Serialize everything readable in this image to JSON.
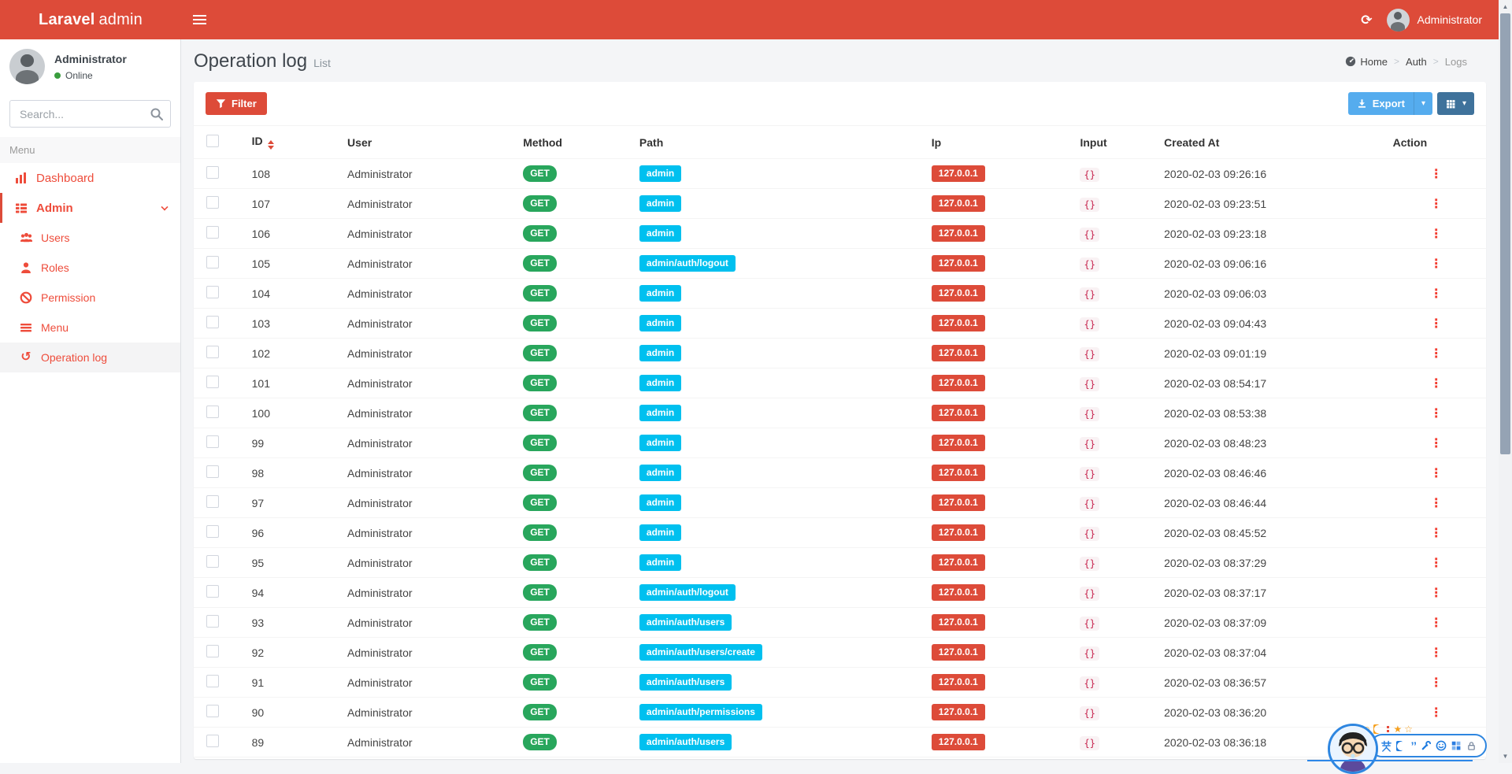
{
  "colors": {
    "navbar_red": "#dd4b39",
    "sidebar_menu_red": "#ee4c3b",
    "badge_method_green": "#28a65c",
    "badge_path_cyan": "#00c0ef",
    "badge_ip_red": "#dd4b39",
    "input_code_pink": "#c7254e",
    "export_button_blue": "#55acee",
    "grid_button_blue": "#3f729b",
    "online_green": "#3a9d3e"
  },
  "navbar": {
    "brand_bold": "Laravel",
    "brand_rest": "admin",
    "user_label": "Administrator",
    "icons": [
      "hamburger-icon",
      "refresh-icon",
      "avatar"
    ]
  },
  "sidebar": {
    "user_name": "Administrator",
    "user_status": "Online",
    "search_placeholder": "Search...",
    "menu_header": "Menu",
    "items": [
      {
        "label": "Dashboard",
        "icon": "bar-chart-icon"
      },
      {
        "label": "Admin",
        "icon": "th-list-icon",
        "active": true,
        "expanded": true
      },
      {
        "label": "Users",
        "icon": "users-icon"
      },
      {
        "label": "Roles",
        "icon": "user-icon"
      },
      {
        "label": "Permission",
        "icon": "ban-icon"
      },
      {
        "label": "Menu",
        "icon": "bars-icon"
      },
      {
        "label": "Operation log",
        "icon": "history-icon",
        "selected": true
      }
    ]
  },
  "header": {
    "title": "Operation log",
    "subtitle": "List",
    "breadcrumb": [
      {
        "label": "Home",
        "icon": "dashboard-gauge-icon"
      },
      {
        "label": "Auth"
      },
      {
        "label": "Logs"
      }
    ]
  },
  "toolbar": {
    "filter_label": "Filter",
    "export_label": "Export",
    "icons": [
      "funnel-icon",
      "download-icon",
      "caret-down-icon",
      "table-grid-icon"
    ]
  },
  "table": {
    "columns": [
      "ID",
      "User",
      "Method",
      "Path",
      "Ip",
      "Input",
      "Created At",
      "Action"
    ],
    "sort_column": "ID",
    "rows": [
      {
        "id": "108",
        "user": "Administrator",
        "method": "GET",
        "path": "admin",
        "ip": "127.0.0.1",
        "input": "{}",
        "created_at": "2020-02-03 09:26:16"
      },
      {
        "id": "107",
        "user": "Administrator",
        "method": "GET",
        "path": "admin",
        "ip": "127.0.0.1",
        "input": "{}",
        "created_at": "2020-02-03 09:23:51"
      },
      {
        "id": "106",
        "user": "Administrator",
        "method": "GET",
        "path": "admin",
        "ip": "127.0.0.1",
        "input": "{}",
        "created_at": "2020-02-03 09:23:18"
      },
      {
        "id": "105",
        "user": "Administrator",
        "method": "GET",
        "path": "admin/auth/logout",
        "ip": "127.0.0.1",
        "input": "{}",
        "created_at": "2020-02-03 09:06:16"
      },
      {
        "id": "104",
        "user": "Administrator",
        "method": "GET",
        "path": "admin",
        "ip": "127.0.0.1",
        "input": "{}",
        "created_at": "2020-02-03 09:06:03"
      },
      {
        "id": "103",
        "user": "Administrator",
        "method": "GET",
        "path": "admin",
        "ip": "127.0.0.1",
        "input": "{}",
        "created_at": "2020-02-03 09:04:43"
      },
      {
        "id": "102",
        "user": "Administrator",
        "method": "GET",
        "path": "admin",
        "ip": "127.0.0.1",
        "input": "{}",
        "created_at": "2020-02-03 09:01:19"
      },
      {
        "id": "101",
        "user": "Administrator",
        "method": "GET",
        "path": "admin",
        "ip": "127.0.0.1",
        "input": "{}",
        "created_at": "2020-02-03 08:54:17"
      },
      {
        "id": "100",
        "user": "Administrator",
        "method": "GET",
        "path": "admin",
        "ip": "127.0.0.1",
        "input": "{}",
        "created_at": "2020-02-03 08:53:38"
      },
      {
        "id": "99",
        "user": "Administrator",
        "method": "GET",
        "path": "admin",
        "ip": "127.0.0.1",
        "input": "{}",
        "created_at": "2020-02-03 08:48:23"
      },
      {
        "id": "98",
        "user": "Administrator",
        "method": "GET",
        "path": "admin",
        "ip": "127.0.0.1",
        "input": "{}",
        "created_at": "2020-02-03 08:46:46"
      },
      {
        "id": "97",
        "user": "Administrator",
        "method": "GET",
        "path": "admin",
        "ip": "127.0.0.1",
        "input": "{}",
        "created_at": "2020-02-03 08:46:44"
      },
      {
        "id": "96",
        "user": "Administrator",
        "method": "GET",
        "path": "admin",
        "ip": "127.0.0.1",
        "input": "{}",
        "created_at": "2020-02-03 08:45:52"
      },
      {
        "id": "95",
        "user": "Administrator",
        "method": "GET",
        "path": "admin",
        "ip": "127.0.0.1",
        "input": "{}",
        "created_at": "2020-02-03 08:37:29"
      },
      {
        "id": "94",
        "user": "Administrator",
        "method": "GET",
        "path": "admin/auth/logout",
        "ip": "127.0.0.1",
        "input": "{}",
        "created_at": "2020-02-03 08:37:17"
      },
      {
        "id": "93",
        "user": "Administrator",
        "method": "GET",
        "path": "admin/auth/users",
        "ip": "127.0.0.1",
        "input": "{}",
        "created_at": "2020-02-03 08:37:09"
      },
      {
        "id": "92",
        "user": "Administrator",
        "method": "GET",
        "path": "admin/auth/users/create",
        "ip": "127.0.0.1",
        "input": "{}",
        "created_at": "2020-02-03 08:37:04"
      },
      {
        "id": "91",
        "user": "Administrator",
        "method": "GET",
        "path": "admin/auth/users",
        "ip": "127.0.0.1",
        "input": "{}",
        "created_at": "2020-02-03 08:36:57"
      },
      {
        "id": "90",
        "user": "Administrator",
        "method": "GET",
        "path": "admin/auth/permissions",
        "ip": "127.0.0.1",
        "input": "{}",
        "created_at": "2020-02-03 08:36:20"
      },
      {
        "id": "89",
        "user": "Administrator",
        "method": "GET",
        "path": "admin/auth/users",
        "ip": "127.0.0.1",
        "input": "{}",
        "created_at": "2020-02-03 08:36:18"
      }
    ],
    "row_icons": [
      "checkbox",
      "vertical-ellipsis-action-icon"
    ]
  },
  "ime_widget": {
    "lang_mode": "英",
    "icons": [
      "sogou-avatar",
      "coin-smiley-icon",
      "coin-smiley-icon",
      "moon-icon",
      "red-dots-icon",
      "star-icon",
      "star-icon",
      "lang-en-icon",
      "moon-icon",
      "punctuation-icon",
      "wrench-icon",
      "smiley-icon",
      "grid-icon",
      "lock-icon"
    ]
  },
  "scrollbar": {
    "icons": [
      "arrow-up-icon",
      "arrow-down-icon"
    ]
  }
}
